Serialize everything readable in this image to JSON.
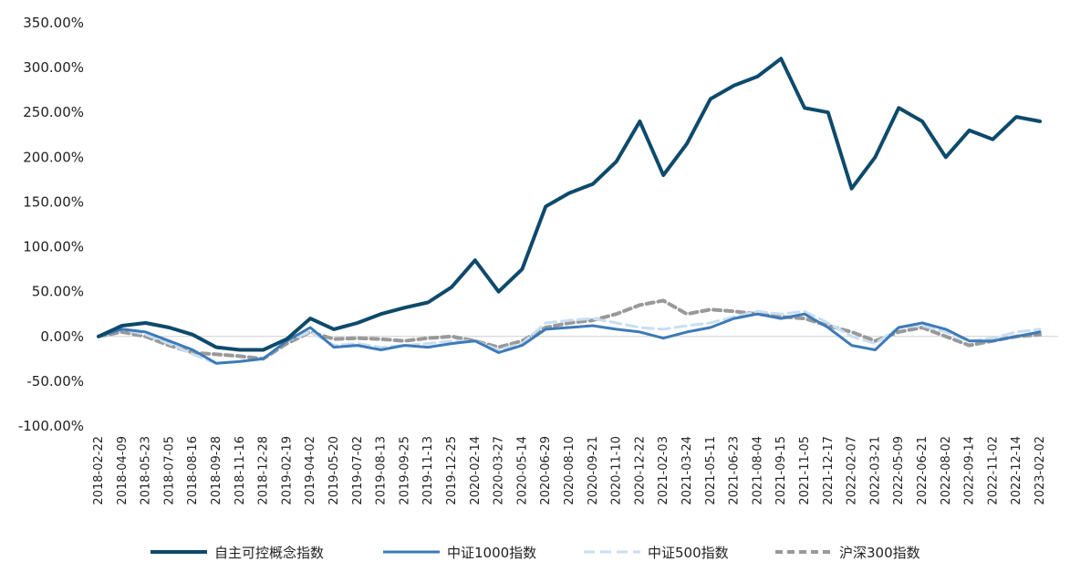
{
  "chart_data": {
    "type": "line",
    "title": "",
    "xlabel": "",
    "ylabel": "",
    "ylim": [
      -100,
      350
    ],
    "yticks": [
      -100,
      -50,
      0,
      50,
      100,
      150,
      200,
      250,
      300,
      350
    ],
    "ytick_labels": [
      "-100.00%",
      "-50.00%",
      "0.00%",
      "50.00%",
      "100.00%",
      "150.00%",
      "200.00%",
      "250.00%",
      "300.00%",
      "350.00%"
    ],
    "x_ticks": [
      "2018-02-22",
      "2018-04-09",
      "2018-05-23",
      "2018-07-05",
      "2018-08-16",
      "2018-09-28",
      "2018-11-16",
      "2018-12-28",
      "2019-02-19",
      "2019-04-02",
      "2019-05-20",
      "2019-07-02",
      "2019-08-13",
      "2019-09-25",
      "2019-11-13",
      "2019-12-25",
      "2020-02-14",
      "2020-03-27",
      "2020-05-14",
      "2020-06-29",
      "2020-08-10",
      "2020-09-21",
      "2020-11-10",
      "2020-12-22",
      "2021-02-03",
      "2021-03-24",
      "2021-05-11",
      "2021-06-23",
      "2021-08-04",
      "2021-09-15",
      "2021-11-05",
      "2021-12-17",
      "2022-02-07",
      "2022-03-21",
      "2022-05-09",
      "2022-06-21",
      "2022-08-02",
      "2022-09-14",
      "2022-11-02",
      "2022-12-14",
      "2023-02-02"
    ],
    "legend_position": "bottom",
    "series": [
      {
        "name": "自主可控概念指数",
        "color": "#0d4a6b",
        "style": "solid-thick",
        "values": [
          0,
          12,
          15,
          10,
          2,
          -12,
          -15,
          -15,
          -3,
          20,
          8,
          15,
          25,
          32,
          38,
          55,
          85,
          50,
          75,
          145,
          160,
          170,
          195,
          240,
          180,
          215,
          265,
          280,
          290,
          310,
          255,
          250,
          165,
          200,
          255,
          240,
          200,
          230,
          220,
          245,
          240
        ]
      },
      {
        "name": "中证1000指数",
        "color": "#3d7ab8",
        "style": "solid",
        "values": [
          0,
          8,
          5,
          -5,
          -15,
          -30,
          -28,
          -25,
          -5,
          10,
          -12,
          -10,
          -15,
          -10,
          -12,
          -8,
          -5,
          -18,
          -10,
          8,
          10,
          12,
          8,
          5,
          -2,
          5,
          10,
          20,
          25,
          20,
          25,
          10,
          -10,
          -15,
          10,
          15,
          8,
          -5,
          -5,
          0,
          5
        ]
      },
      {
        "name": "中证500指数",
        "color": "#c8def2",
        "style": "dashed",
        "values": [
          0,
          8,
          2,
          -8,
          -20,
          -30,
          -28,
          -25,
          -5,
          5,
          -10,
          -8,
          -12,
          -10,
          -8,
          -5,
          -5,
          -15,
          -8,
          15,
          18,
          20,
          15,
          10,
          8,
          12,
          15,
          22,
          28,
          25,
          28,
          15,
          0,
          -8,
          10,
          12,
          5,
          -5,
          -2,
          5,
          8
        ]
      },
      {
        "name": "沪深300指数",
        "color": "#999999",
        "style": "dashed-thick",
        "values": [
          0,
          5,
          0,
          -10,
          -18,
          -20,
          -22,
          -25,
          -8,
          5,
          -3,
          -2,
          -3,
          -5,
          -2,
          0,
          -5,
          -12,
          -5,
          10,
          15,
          18,
          25,
          35,
          40,
          25,
          30,
          28,
          25,
          22,
          20,
          12,
          5,
          -5,
          5,
          10,
          0,
          -10,
          -5,
          0,
          2
        ]
      }
    ]
  }
}
